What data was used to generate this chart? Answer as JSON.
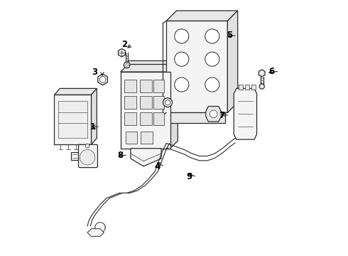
{
  "bg_color": "#ffffff",
  "line_color": "#2a2a2a",
  "text_color": "#000000",
  "fig_width": 4.9,
  "fig_height": 3.6,
  "dpi": 100,
  "label_positions": {
    "1": [
      0.178,
      0.5,
      0.148,
      0.5
    ],
    "2": [
      0.31,
      0.82,
      0.31,
      0.8
    ],
    "3": [
      0.205,
      0.69,
      0.235,
      0.685
    ],
    "4": [
      0.435,
      0.35,
      0.415,
      0.375
    ],
    "5": [
      0.72,
      0.86,
      0.68,
      0.855
    ],
    "6": [
      0.89,
      0.72,
      0.86,
      0.718
    ],
    "7": [
      0.695,
      0.545,
      0.672,
      0.558
    ],
    "8": [
      0.295,
      0.39,
      0.268,
      0.395
    ],
    "9": [
      0.565,
      0.31,
      0.54,
      0.325
    ]
  }
}
